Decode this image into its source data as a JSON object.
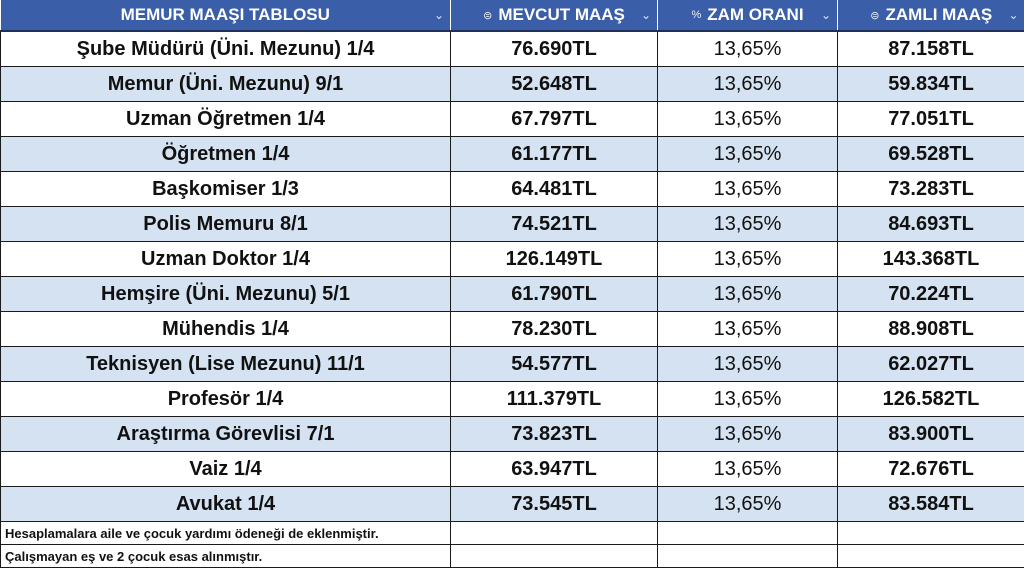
{
  "header": {
    "col1": {
      "label": "MEMUR MAAŞI TABLOSU",
      "icon": ""
    },
    "col2": {
      "label": "MEVCUT MAAŞ",
      "icon": "⊜"
    },
    "col3": {
      "label": "ZAM ORANI",
      "icon": "%"
    },
    "col4": {
      "label": "ZAMLI MAAŞ",
      "icon": "⊜"
    },
    "chevron": "⌄"
  },
  "rows": [
    {
      "name": "Şube Müdürü (Üni. Mezunu) 1/4",
      "current": "76.690TL",
      "rate": "13,65%",
      "raised": "87.158TL"
    },
    {
      "name": "Memur (Üni. Mezunu) 9/1",
      "current": "52.648TL",
      "rate": "13,65%",
      "raised": "59.834TL"
    },
    {
      "name": "Uzman Öğretmen 1/4",
      "current": "67.797TL",
      "rate": "13,65%",
      "raised": "77.051TL"
    },
    {
      "name": "Öğretmen 1/4",
      "current": "61.177TL",
      "rate": "13,65%",
      "raised": "69.528TL"
    },
    {
      "name": "Başkomiser 1/3",
      "current": "64.481TL",
      "rate": "13,65%",
      "raised": "73.283TL"
    },
    {
      "name": "Polis Memuru 8/1",
      "current": "74.521TL",
      "rate": "13,65%",
      "raised": "84.693TL"
    },
    {
      "name": "Uzman Doktor 1/4",
      "current": "126.149TL",
      "rate": "13,65%",
      "raised": "143.368TL"
    },
    {
      "name": "Hemşire (Üni. Mezunu) 5/1",
      "current": "61.790TL",
      "rate": "13,65%",
      "raised": "70.224TL"
    },
    {
      "name": "Mühendis 1/4",
      "current": "78.230TL",
      "rate": "13,65%",
      "raised": "88.908TL"
    },
    {
      "name": "Teknisyen (Lise Mezunu) 11/1",
      "current": "54.577TL",
      "rate": "13,65%",
      "raised": "62.027TL"
    },
    {
      "name": "Profesör 1/4",
      "current": "111.379TL",
      "rate": "13,65%",
      "raised": "126.582TL"
    },
    {
      "name": "Araştırma Görevlisi 7/1",
      "current": "73.823TL",
      "rate": "13,65%",
      "raised": "83.900TL"
    },
    {
      "name": "Vaiz 1/4",
      "current": "63.947TL",
      "rate": "13,65%",
      "raised": "72.676TL"
    },
    {
      "name": "Avukat 1/4",
      "current": "73.545TL",
      "rate": "13,65%",
      "raised": "83.584TL"
    }
  ],
  "notes": [
    "Hesaplamalara aile ve çocuk yardımı ödeneği de eklenmiştir.",
    "Çalışmayan eş ve 2 çocuk esas alınmıştır."
  ],
  "colors": {
    "header_bg": "#3b5ea8",
    "band_bg": "#d4e2f1"
  }
}
